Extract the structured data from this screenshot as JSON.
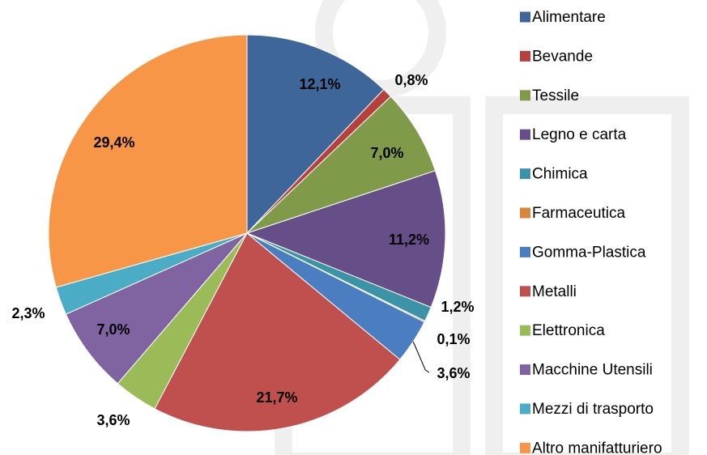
{
  "chart_data": {
    "type": "pie",
    "categories": [
      "Alimentare",
      "Bevande",
      "Tessile",
      "Legno e carta",
      "Chimica",
      "Farmaceutica",
      "Gomma-Plastica",
      "Metalli",
      "Elettronica",
      "Macchine Utensili",
      "Mezzi di trasporto",
      "Altro manifatturiero"
    ],
    "values": [
      12.1,
      0.8,
      7.0,
      11.2,
      1.2,
      0.1,
      3.6,
      21.7,
      3.6,
      7.0,
      2.3,
      29.4
    ],
    "value_labels": [
      "12,1%",
      "0,8%",
      "7,0%",
      "11,2%",
      "1,2%",
      "0,1%",
      "3,6%",
      "21,7%",
      "3,6%",
      "7,0%",
      "2,3%",
      "29,4%"
    ],
    "colors": [
      "#3e6699",
      "#b5403c",
      "#7f9a48",
      "#664f88",
      "#3b93a8",
      "#d9883a",
      "#4a7ec0",
      "#c0504d",
      "#9bbb59",
      "#8064a2",
      "#4bacc6",
      "#f79646"
    ],
    "legend": "right"
  }
}
